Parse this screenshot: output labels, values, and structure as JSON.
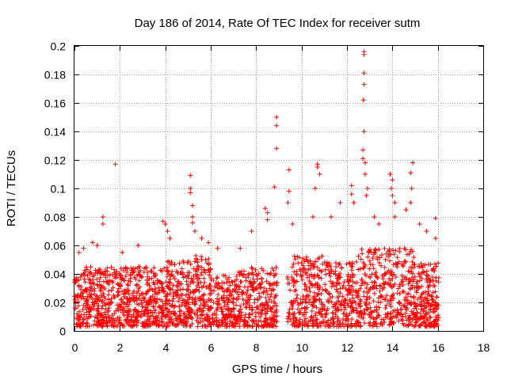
{
  "chart_data": {
    "type": "scatter",
    "title": "Day 186 of 2014, Rate Of TEC Index for receiver sutm",
    "xlabel": "GPS time / hours",
    "ylabel": "ROTI / TECUs",
    "xlim": [
      0,
      18
    ],
    "ylim": [
      0,
      0.2
    ],
    "x_ticks": [
      0,
      2,
      4,
      6,
      8,
      10,
      12,
      14,
      16,
      18
    ],
    "x_tick_labels": [
      "0",
      "2",
      "4",
      "6",
      "8",
      "10",
      "12",
      "14",
      "16",
      "18"
    ],
    "y_ticks": [
      0,
      0.02,
      0.04,
      0.06,
      0.08,
      0.1,
      0.12,
      0.14,
      0.16,
      0.18,
      0.2
    ],
    "y_tick_labels": [
      "0",
      "0.02",
      "0.04",
      "0.06",
      "0.08",
      "0.1",
      "0.12",
      "0.14",
      "0.16",
      "0.18",
      "0.2"
    ],
    "grid": true,
    "marker": "+",
    "color": "#ff0000",
    "series": [
      {
        "name": "ROTI",
        "note": "dense cloud of points from 0 to 16 h mostly between 0.003 and 0.05 TECU, data gap ~8.9-9.4 h; notable outliers listed",
        "points": [
          [
            0.2,
            0.055
          ],
          [
            0.4,
            0.058
          ],
          [
            0.8,
            0.062
          ],
          [
            1.0,
            0.06
          ],
          [
            1.25,
            0.08
          ],
          [
            1.25,
            0.075
          ],
          [
            1.8,
            0.117
          ],
          [
            2.1,
            0.055
          ],
          [
            2.8,
            0.06
          ],
          [
            3.9,
            0.077
          ],
          [
            4.0,
            0.075
          ],
          [
            4.1,
            0.07
          ],
          [
            4.2,
            0.065
          ],
          [
            5.1,
            0.109
          ],
          [
            5.1,
            0.1
          ],
          [
            5.1,
            0.097
          ],
          [
            5.2,
            0.088
          ],
          [
            5.2,
            0.08
          ],
          [
            5.2,
            0.076
          ],
          [
            5.3,
            0.07
          ],
          [
            5.6,
            0.065
          ],
          [
            5.9,
            0.062
          ],
          [
            6.3,
            0.058
          ],
          [
            7.3,
            0.058
          ],
          [
            7.8,
            0.07
          ],
          [
            8.4,
            0.086
          ],
          [
            8.5,
            0.083
          ],
          [
            8.5,
            0.078
          ],
          [
            8.9,
            0.15
          ],
          [
            8.9,
            0.144
          ],
          [
            8.9,
            0.128
          ],
          [
            8.8,
            0.101
          ],
          [
            9.45,
            0.113
          ],
          [
            9.45,
            0.098
          ],
          [
            9.4,
            0.09
          ],
          [
            9.6,
            0.075
          ],
          [
            10.7,
            0.117
          ],
          [
            10.7,
            0.115
          ],
          [
            10.8,
            0.11
          ],
          [
            10.6,
            0.1
          ],
          [
            10.5,
            0.08
          ],
          [
            11.3,
            0.08
          ],
          [
            11.7,
            0.09
          ],
          [
            12.2,
            0.102
          ],
          [
            12.2,
            0.096
          ],
          [
            12.3,
            0.09
          ],
          [
            12.75,
            0.196
          ],
          [
            12.75,
            0.194
          ],
          [
            12.75,
            0.181
          ],
          [
            12.75,
            0.173
          ],
          [
            12.72,
            0.162
          ],
          [
            12.75,
            0.14
          ],
          [
            12.7,
            0.127
          ],
          [
            12.7,
            0.121
          ],
          [
            12.8,
            0.118
          ],
          [
            12.8,
            0.11
          ],
          [
            12.9,
            0.1
          ],
          [
            12.85,
            0.095
          ],
          [
            13.2,
            0.08
          ],
          [
            13.4,
            0.075
          ],
          [
            13.9,
            0.11
          ],
          [
            14.0,
            0.106
          ],
          [
            13.95,
            0.1
          ],
          [
            14.0,
            0.095
          ],
          [
            14.1,
            0.09
          ],
          [
            14.1,
            0.08
          ],
          [
            14.8,
            0.111
          ],
          [
            14.9,
            0.118
          ],
          [
            14.85,
            0.1
          ],
          [
            14.8,
            0.09
          ],
          [
            14.6,
            0.085
          ],
          [
            15.2,
            0.075
          ],
          [
            15.5,
            0.07
          ],
          [
            15.9,
            0.079
          ],
          [
            15.9,
            0.065
          ]
        ]
      }
    ]
  }
}
